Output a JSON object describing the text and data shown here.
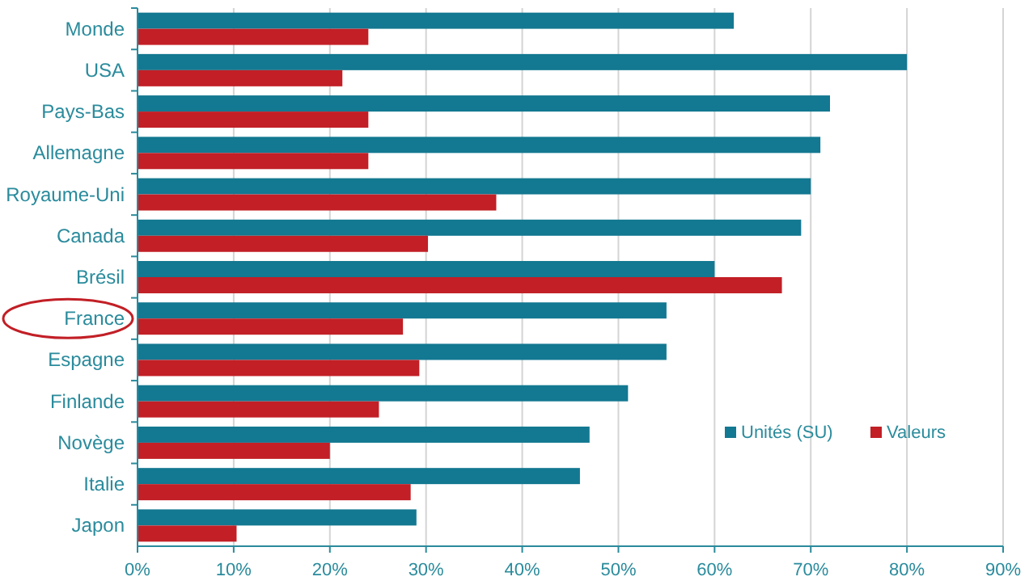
{
  "chart_data": {
    "type": "bar",
    "orientation": "horizontal",
    "categories": [
      "Monde",
      "USA",
      "Pays-Bas",
      "Allemagne",
      "Royaume-Uni",
      "Canada",
      "Brésil",
      "France",
      "Espagne",
      "Finlande",
      "Novège",
      "Italie",
      "Japon"
    ],
    "series": [
      {
        "name": "Unités (SU)",
        "color": "#137891",
        "values": [
          62,
          80,
          72,
          71,
          70,
          69,
          60,
          55,
          55,
          51,
          47,
          46,
          29
        ]
      },
      {
        "name": "Valeurs",
        "color": "#c21f26",
        "values": [
          24,
          21.3,
          24,
          24,
          37.3,
          30.2,
          67,
          27.6,
          29.3,
          25.1,
          20,
          28.4,
          10.3
        ]
      }
    ],
    "xlim": [
      0,
      90
    ],
    "xticks": [
      {
        "value": 0,
        "label": "0%"
      },
      {
        "value": 10,
        "label": "10%"
      },
      {
        "value": 20,
        "label": "20%"
      },
      {
        "value": 30,
        "label": "30%"
      },
      {
        "value": 40,
        "label": "40%"
      },
      {
        "value": 50,
        "label": "50%"
      },
      {
        "value": 60,
        "label": "60%"
      },
      {
        "value": 70,
        "label": "70%"
      },
      {
        "value": 80,
        "label": "80%"
      },
      {
        "value": 90,
        "label": "90%"
      }
    ],
    "grid": "x",
    "legend": "right"
  }
}
